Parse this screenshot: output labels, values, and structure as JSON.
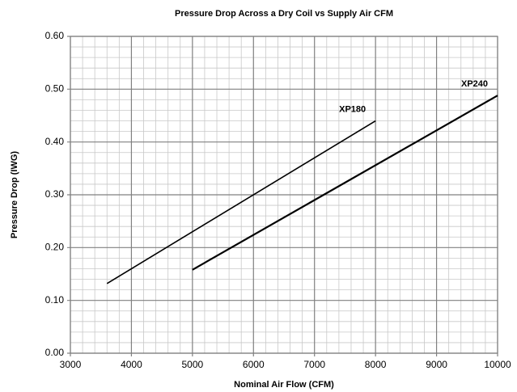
{
  "chart_data": {
    "type": "line",
    "title": "Pressure Drop Across a Dry Coil vs Supply Air CFM",
    "xlabel": "Nominal Air Flow (CFM)",
    "ylabel": "Pressure Drop (IWG)",
    "xlim": [
      3000,
      10000
    ],
    "xticks": [
      3000,
      4000,
      5000,
      6000,
      7000,
      8000,
      9000,
      10000
    ],
    "ylim": [
      0,
      0.6
    ],
    "yticks": [
      {
        "value": 0,
        "label": "0.00"
      },
      {
        "value": 0.1,
        "label": "0.10"
      },
      {
        "value": 0.2,
        "label": "0.20"
      },
      {
        "value": 0.3,
        "label": "0.30"
      },
      {
        "value": 0.4,
        "label": "0.40"
      },
      {
        "value": 0.5,
        "label": "0.50"
      },
      {
        "value": 0.6,
        "label": "0.60"
      }
    ],
    "grid": true,
    "minor_grid": true,
    "series": [
      {
        "name": "XP180",
        "color": "#000000",
        "x": [
          3600,
          8000
        ],
        "values": [
          0.132,
          0.44
        ]
      },
      {
        "name": "XP240",
        "color": "#000000",
        "x": [
          5000,
          10000
        ],
        "values": [
          0.158,
          0.488
        ]
      }
    ]
  }
}
